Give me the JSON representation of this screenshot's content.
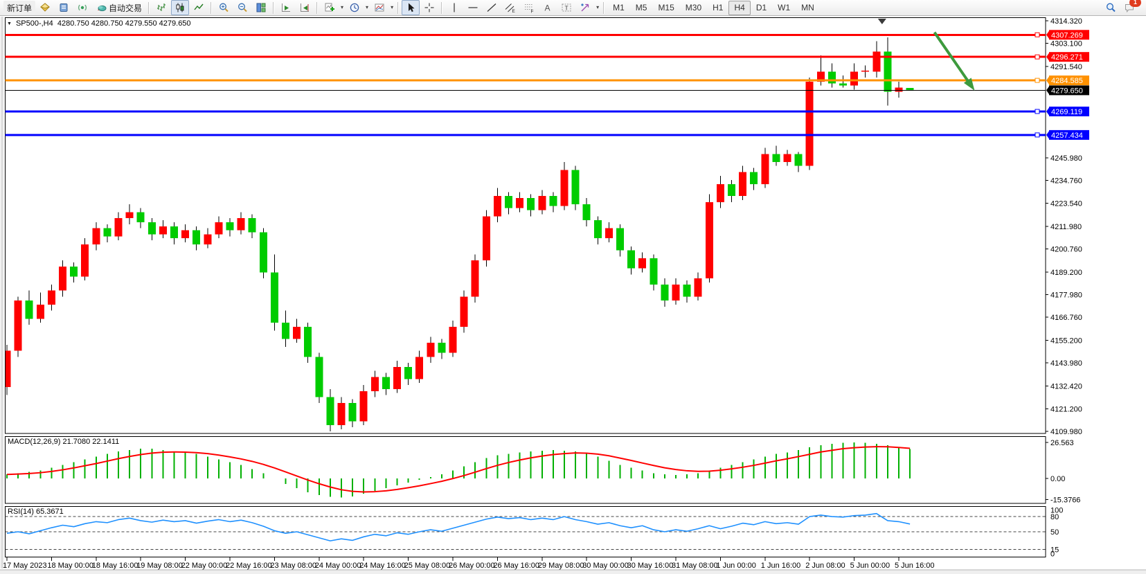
{
  "toolbar": {
    "new_order_label": "新订单",
    "auto_trading_label": "自动交易",
    "timeframes": [
      "M1",
      "M5",
      "M15",
      "M30",
      "H1",
      "H4",
      "D1",
      "W1",
      "MN"
    ],
    "active_timeframe": "H4",
    "notification_count": "1"
  },
  "chart": {
    "title": "SP500-,H4  4280.750 4280.750 4279.550 4279.650",
    "symbol": "SP500-",
    "period": "H4",
    "open": "4280.750",
    "high": "4280.750",
    "low": "4279.550",
    "close": "4279.650"
  },
  "indicators": {
    "macd": {
      "label": "MACD(12,26,9) 21.7080 22.1411",
      "axis": [
        "26.563",
        "0.00",
        "-15.3766"
      ]
    },
    "rsi": {
      "label": "RSI(14) 65.3671",
      "axis": [
        "100",
        "80",
        "50",
        "15",
        "0"
      ],
      "levels": [
        80,
        50,
        15
      ]
    }
  },
  "price_axis": {
    "ticks": [
      4314.32,
      4303.1,
      4291.54,
      4245.98,
      4234.76,
      4223.54,
      4211.98,
      4200.76,
      4189.2,
      4177.98,
      4166.76,
      4155.2,
      4143.98,
      4132.42,
      4121.2,
      4109.98
    ]
  },
  "price_lines": [
    {
      "price": 4307.269,
      "label": "4307.269",
      "color": "#ff0000",
      "thickness": 3,
      "handle": true
    },
    {
      "price": 4296.271,
      "label": "4296.271",
      "color": "#ff0000",
      "thickness": 3,
      "handle": true
    },
    {
      "price": 4284.585,
      "label": "4284.585",
      "color": "#ff9100",
      "thickness": 3,
      "handle": true
    },
    {
      "price": 4269.119,
      "label": "4269.119",
      "color": "#0000ff",
      "thickness": 3,
      "handle": true
    },
    {
      "price": 4257.434,
      "label": "4257.434",
      "color": "#0000ff",
      "thickness": 3,
      "handle": true
    }
  ],
  "current_price_line": {
    "price": 4279.65,
    "label": "4279.650",
    "color": "#000000"
  },
  "annotations": {
    "arrow": {
      "x1_bar": 83.2,
      "y1_price": 4308.5,
      "x2_bar": 86.8,
      "y2_price": 4279.5,
      "color": "#3d9a3d"
    },
    "shift_marker_bar": 78.5
  },
  "chart_data": {
    "type": "candlestick",
    "symbol": "SP500-",
    "timeframe": "H4",
    "up_color": "#ff0000",
    "down_color": "#00cc00",
    "wick_color": "#000000",
    "ylim": [
      4108.9,
      4315.8
    ],
    "bars_per_label": 4,
    "x_labels": [
      "17 May 2023",
      "18 May 00:00",
      "18 May 16:00",
      "19 May 08:00",
      "22 May 00:00",
      "22 May 16:00",
      "23 May 08:00",
      "24 May 00:00",
      "24 May 16:00",
      "25 May 08:00",
      "26 May 00:00",
      "26 May 16:00",
      "29 May 08:00",
      "30 May 00:00",
      "30 May 16:00",
      "31 May 08:00",
      "1 Jun 00:00",
      "1 Jun 16:00",
      "2 Jun 08:00",
      "5 Jun 00:00",
      "5 Jun 16:00"
    ],
    "candles": [
      [
        4132,
        4153,
        4128,
        4150
      ],
      [
        4150,
        4177,
        4147,
        4175
      ],
      [
        4175,
        4180,
        4163,
        4166
      ],
      [
        4166,
        4179,
        4164,
        4173
      ],
      [
        4173,
        4183,
        4170,
        4180
      ],
      [
        4180,
        4195,
        4177,
        4192
      ],
      [
        4192,
        4194,
        4184,
        4187
      ],
      [
        4187,
        4206,
        4185,
        4203
      ],
      [
        4203,
        4214,
        4200,
        4211
      ],
      [
        4211,
        4213,
        4204,
        4207
      ],
      [
        4207,
        4219,
        4205,
        4216
      ],
      [
        4216,
        4223,
        4213,
        4219
      ],
      [
        4219,
        4221,
        4211,
        4214
      ],
      [
        4214,
        4216,
        4205,
        4208
      ],
      [
        4208,
        4215,
        4206,
        4212
      ],
      [
        4212,
        4214,
        4203,
        4206
      ],
      [
        4206,
        4213,
        4204,
        4210
      ],
      [
        4210,
        4212,
        4200,
        4203
      ],
      [
        4203,
        4211,
        4201,
        4208
      ],
      [
        4208,
        4217,
        4206,
        4214
      ],
      [
        4214,
        4216,
        4207,
        4210
      ],
      [
        4210,
        4219,
        4208,
        4216
      ],
      [
        4216,
        4218,
        4206,
        4209
      ],
      [
        4209,
        4211,
        4186,
        4189
      ],
      [
        4189,
        4198,
        4160,
        4164
      ],
      [
        4164,
        4170,
        4152,
        4156
      ],
      [
        4156,
        4166,
        4154,
        4162
      ],
      [
        4162,
        4164,
        4144,
        4147
      ],
      [
        4147,
        4149,
        4124,
        4127
      ],
      [
        4127,
        4131,
        4110,
        4113
      ],
      [
        4113,
        4127,
        4111,
        4124
      ],
      [
        4124,
        4126,
        4112,
        4115
      ],
      [
        4115,
        4133,
        4113,
        4130
      ],
      [
        4130,
        4140,
        4127,
        4137
      ],
      [
        4137,
        4139,
        4128,
        4131
      ],
      [
        4131,
        4145,
        4129,
        4142
      ],
      [
        4142,
        4144,
        4133,
        4136
      ],
      [
        4136,
        4150,
        4134,
        4147
      ],
      [
        4147,
        4157,
        4144,
        4154
      ],
      [
        4154,
        4156,
        4146,
        4149
      ],
      [
        4149,
        4165,
        4147,
        4162
      ],
      [
        4162,
        4180,
        4159,
        4177
      ],
      [
        4177,
        4198,
        4174,
        4195
      ],
      [
        4195,
        4220,
        4192,
        4217
      ],
      [
        4217,
        4231,
        4214,
        4227
      ],
      [
        4227,
        4229,
        4218,
        4221
      ],
      [
        4221,
        4229,
        4219,
        4226
      ],
      [
        4226,
        4228,
        4217,
        4220
      ],
      [
        4220,
        4230,
        4218,
        4227
      ],
      [
        4227,
        4229,
        4219,
        4222
      ],
      [
        4222,
        4244,
        4220,
        4240
      ],
      [
        4240,
        4242,
        4220,
        4223
      ],
      [
        4223,
        4226,
        4212,
        4215
      ],
      [
        4215,
        4217,
        4203,
        4206
      ],
      [
        4206,
        4214,
        4204,
        4211
      ],
      [
        4211,
        4213,
        4197,
        4200
      ],
      [
        4200,
        4202,
        4188,
        4191
      ],
      [
        4191,
        4199,
        4189,
        4196
      ],
      [
        4196,
        4198,
        4180,
        4183
      ],
      [
        4183,
        4186,
        4172,
        4175
      ],
      [
        4175,
        4186,
        4173,
        4183
      ],
      [
        4183,
        4185,
        4174,
        4177
      ],
      [
        4177,
        4189,
        4175,
        4186
      ],
      [
        4186,
        4228,
        4184,
        4224
      ],
      [
        4224,
        4237,
        4221,
        4233
      ],
      [
        4233,
        4235,
        4224,
        4227
      ],
      [
        4227,
        4242,
        4225,
        4239
      ],
      [
        4239,
        4241,
        4230,
        4233
      ],
      [
        4233,
        4251,
        4231,
        4248
      ],
      [
        4248,
        4252,
        4242,
        4244
      ],
      [
        4244,
        4250,
        4242,
        4248
      ],
      [
        4248,
        4249,
        4239,
        4242
      ],
      [
        4242,
        4286,
        4240,
        4284
      ],
      [
        4284,
        4297,
        4282,
        4289
      ],
      [
        4289,
        4293,
        4281,
        4283
      ],
      [
        4283,
        4287,
        4281,
        4282
      ],
      [
        4282,
        4293,
        4280,
        4289
      ],
      [
        4289,
        4292,
        4286,
        4289.5
      ],
      [
        4289,
        4304,
        4286,
        4299
      ],
      [
        4299,
        4306,
        4272,
        4279
      ],
      [
        4279,
        4284,
        4276,
        4281
      ],
      [
        4280.75,
        4280.75,
        4279.55,
        4279.65
      ]
    ],
    "macd": {
      "ylim": [
        -18.2,
        30.8
      ],
      "hist_color": "#00b000",
      "signal_color": "#ff0000",
      "histogram": [
        3,
        4,
        5,
        6,
        8,
        10,
        12,
        14,
        16,
        18,
        20,
        21,
        22,
        22,
        21,
        20,
        19,
        18,
        16,
        14,
        12,
        10,
        7,
        4,
        0,
        -4,
        -7,
        -10,
        -12,
        -13.5,
        -14,
        -13,
        -11,
        -9,
        -7,
        -5,
        -3,
        -1,
        1,
        3,
        6,
        9,
        12,
        15,
        17,
        18,
        19,
        20,
        20.5,
        21,
        20.5,
        20,
        18,
        16,
        13,
        10,
        8,
        6,
        4,
        3,
        2.5,
        3,
        4,
        6,
        8,
        10,
        12,
        14,
        16,
        18,
        19,
        21,
        23,
        24.5,
        25.5,
        26.2,
        26.5,
        26.2,
        25.5,
        24.5,
        23,
        21.7
      ],
      "signal": [
        3.0,
        3.3,
        3.7,
        4.3,
        5.2,
        6.4,
        7.8,
        9.4,
        11.0,
        12.8,
        14.6,
        16.2,
        17.6,
        18.7,
        19.3,
        19.5,
        19.4,
        19.0,
        18.3,
        17.2,
        15.9,
        14.4,
        12.6,
        10.4,
        7.8,
        4.9,
        1.9,
        -1.1,
        -3.8,
        -6.2,
        -8.2,
        -9.4,
        -9.8,
        -9.6,
        -9.0,
        -8.0,
        -6.7,
        -5.3,
        -3.7,
        -2.0,
        0.0,
        2.2,
        4.7,
        7.3,
        9.7,
        11.8,
        13.6,
        15.2,
        16.5,
        17.6,
        18.3,
        18.8,
        18.6,
        17.9,
        16.7,
        15.0,
        13.3,
        11.4,
        9.6,
        7.9,
        6.6,
        5.7,
        5.3,
        5.4,
        6.1,
        7.1,
        8.3,
        9.7,
        11.3,
        13.0,
        14.5,
        16.1,
        17.8,
        19.5,
        20.7,
        21.9,
        22.6,
        23.1,
        23.4,
        23.3,
        22.8,
        22.14
      ]
    },
    "rsi": {
      "ylim": [
        0,
        100
      ],
      "color": "#1e90ff",
      "values": [
        47,
        50,
        46,
        52,
        58,
        63,
        60,
        66,
        70,
        68,
        74,
        77,
        72,
        69,
        73,
        70,
        72,
        67,
        71,
        74,
        70,
        73,
        68,
        61,
        52,
        47,
        50,
        44,
        38,
        32,
        36,
        33,
        40,
        45,
        42,
        48,
        45,
        50,
        54,
        51,
        57,
        63,
        69,
        75,
        79,
        76,
        78,
        74,
        77,
        74,
        80,
        74,
        70,
        65,
        68,
        62,
        58,
        62,
        54,
        50,
        54,
        51,
        56,
        62,
        56,
        61,
        67,
        64,
        70,
        66,
        68,
        65,
        80,
        83,
        80,
        79,
        82,
        83,
        86,
        72,
        70,
        65.37
      ]
    }
  }
}
